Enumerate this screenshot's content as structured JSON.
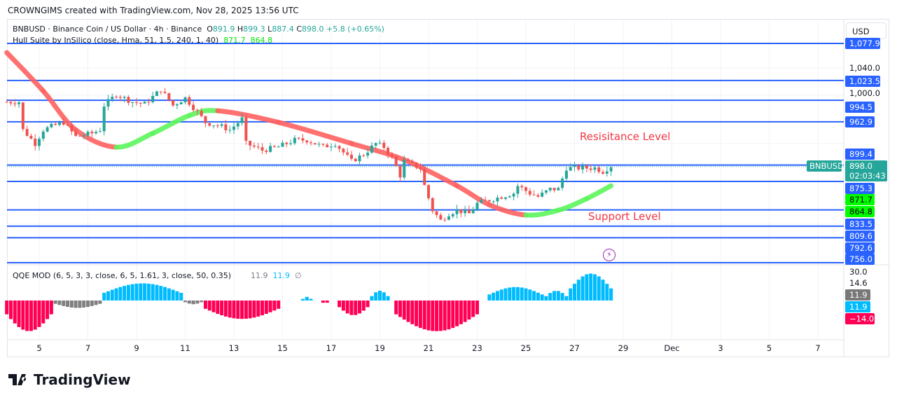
{
  "header": {
    "credit": "CROWNGIMS created with TradingView.com, Nov 28, 2025 13:56 UTC"
  },
  "legend": {
    "symbol": "BNBUSD · Binance Coin / US Dollar · 4h · Binance",
    "o_label": "O",
    "o": "891.9",
    "h_label": "H",
    "h": "899.3",
    "l_label": "L",
    "l": "887.4",
    "c_label": "C",
    "c": "898.0",
    "change": "+5.8 (+0.65%)",
    "hull": "Hull Suite by InSilico (close, Hma, 51, 1.5, 240, 1, 40)",
    "hull_v1": "871.7",
    "hull_v2": "864.8",
    "qqe": "QQE MOD (6, 5, 3, 3, close, 6, 5, 1.61, 3, close, 50, 0.35)",
    "qqe_v1": "11.9",
    "qqe_v2": "11.9",
    "qqe_v3": "∅"
  },
  "axis": {
    "currency": "USD",
    "ticks": [
      "1,040.0",
      "1,000.0"
    ],
    "qqe_ticks": [
      "30.0",
      "14.6"
    ],
    "labels": {
      "l1": "1,077.9",
      "l2": "1,023.5",
      "l3": "994.5",
      "l4": "962.9",
      "l5": "899.4",
      "price": "898.0",
      "countdown": "02:03:43",
      "l6": "875.3",
      "hull1": "871.7",
      "hull2": "864.8",
      "l7": "833.5",
      "l8": "809.6",
      "l9": "792.6",
      "l10": "756.0",
      "qqe_grey": "11.9",
      "qqe_blue": "11.9",
      "qqe_red": "−14.0"
    },
    "symbol_tag": "BNBUSD"
  },
  "dates": [
    "5",
    "7",
    "9",
    "11",
    "13",
    "15",
    "17",
    "19",
    "21",
    "23",
    "25",
    "27",
    "29",
    "Dec",
    "3",
    "5",
    "7"
  ],
  "annotations": {
    "resistance": "Resisitance Level",
    "support": "Support Level"
  },
  "icons": {
    "lightning": "lightning-icon",
    "logo": "tradingview-logo"
  },
  "logo_text": "TradingView",
  "colors": {
    "up": "#26a69a",
    "down": "#ef5350",
    "level": "#2962ff",
    "hull_up": "#00ff00",
    "hull_down": "#ff0000",
    "qqe_blue": "#00bcff",
    "qqe_grey": "#808080",
    "qqe_red": "#ff0055"
  },
  "chart_data": {
    "type": "candlestick",
    "timeframe": "4h",
    "ylim": [
      756,
      1077.9
    ],
    "price_path": [
      [
        "2025-11-03T16:00",
        992
      ],
      [
        "2025-11-04T04:00",
        992
      ],
      [
        "2025-11-04T08:00",
        951
      ],
      [
        "2025-11-04T20:00",
        931
      ],
      [
        "2025-11-05T04:00",
        951
      ],
      [
        "2025-11-05T12:00",
        956
      ],
      [
        "2025-11-06T00:00",
        962
      ],
      [
        "2025-11-06T12:00",
        941
      ],
      [
        "2025-11-07T04:00",
        946
      ],
      [
        "2025-11-07T12:00",
        951
      ],
      [
        "2025-11-07T16:00",
        987
      ],
      [
        "2025-11-08T04:00",
        1003
      ],
      [
        "2025-11-08T20:00",
        992
      ],
      [
        "2025-11-09T08:00",
        989
      ],
      [
        "2025-11-10T00:00",
        1010
      ],
      [
        "2025-11-10T12:00",
        987
      ],
      [
        "2025-11-11T00:00",
        998
      ],
      [
        "2025-11-11T12:00",
        977
      ],
      [
        "2025-11-11T20:00",
        962
      ],
      [
        "2025-11-12T12:00",
        956
      ],
      [
        "2025-11-12T20:00",
        951
      ],
      [
        "2025-11-13T08:00",
        967
      ],
      [
        "2025-11-13T12:00",
        931
      ],
      [
        "2025-11-14T04:00",
        921
      ],
      [
        "2025-11-14T20:00",
        926
      ],
      [
        "2025-11-15T12:00",
        936
      ],
      [
        "2025-11-16T00:00",
        936
      ],
      [
        "2025-11-16T16:00",
        926
      ],
      [
        "2025-11-17T04:00",
        931
      ],
      [
        "2025-11-17T20:00",
        905
      ],
      [
        "2025-11-18T08:00",
        915
      ],
      [
        "2025-11-18T20:00",
        931
      ],
      [
        "2025-11-19T04:00",
        926
      ],
      [
        "2025-11-19T12:00",
        910
      ],
      [
        "2025-11-19T20:00",
        884
      ],
      [
        "2025-11-20T00:00",
        905
      ],
      [
        "2025-11-20T16:00",
        895
      ],
      [
        "2025-11-20T20:00",
        869
      ],
      [
        "2025-11-21T04:00",
        833
      ],
      [
        "2025-11-21T12:00",
        818
      ],
      [
        "2025-11-21T20:00",
        828
      ],
      [
        "2025-11-22T04:00",
        833
      ],
      [
        "2025-11-22T16:00",
        828
      ],
      [
        "2025-11-23T00:00",
        843
      ],
      [
        "2025-11-23T12:00",
        848
      ],
      [
        "2025-11-24T00:00",
        853
      ],
      [
        "2025-11-24T12:00",
        858
      ],
      [
        "2025-11-24T16:00",
        869
      ],
      [
        "2025-11-25T04:00",
        858
      ],
      [
        "2025-11-25T12:00",
        853
      ],
      [
        "2025-11-26T00:00",
        864
      ],
      [
        "2025-11-26T08:00",
        864
      ],
      [
        "2025-11-26T16:00",
        895
      ],
      [
        "2025-11-27T04:00",
        895
      ],
      [
        "2025-11-27T20:00",
        895
      ],
      [
        "2025-11-28T04:00",
        890
      ],
      [
        "2025-11-28T12:00",
        898
      ]
    ],
    "hull": [
      [
        "2025-11-03T16:00",
        1064.5,
        "down"
      ],
      [
        "2025-11-05T04:00",
        1008,
        "down"
      ],
      [
        "2025-11-06T12:00",
        951,
        "down"
      ],
      [
        "2025-11-08T04:00",
        925.6,
        "up"
      ],
      [
        "2025-11-09T16:00",
        946,
        "up"
      ],
      [
        "2025-11-11T04:00",
        972,
        "up"
      ],
      [
        "2025-11-12T08:00",
        979,
        "down"
      ],
      [
        "2025-11-14T20:00",
        962,
        "down"
      ],
      [
        "2025-11-17T20:00",
        931,
        "down"
      ],
      [
        "2025-11-20T00:00",
        907,
        "down"
      ],
      [
        "2025-11-22T04:00",
        869,
        "down"
      ],
      [
        "2025-11-23T12:00",
        841,
        "down"
      ],
      [
        "2025-11-25T00:00",
        826,
        "up"
      ],
      [
        "2025-11-26T08:00",
        833,
        "up"
      ],
      [
        "2025-11-27T12:00",
        850,
        "up"
      ],
      [
        "2025-11-28T12:00",
        869,
        "up"
      ]
    ],
    "levels": [
      1077.9,
      1023.5,
      994.5,
      962.9,
      899.4,
      875.3,
      833.5,
      809.6,
      792.6,
      756.0
    ],
    "qqe_hist": [
      {
        "from": "2025-11-03T16:00",
        "to": "2025-11-05T12:00",
        "peak": -25,
        "color": "red"
      },
      {
        "from": "2025-11-05T16:00",
        "to": "2025-11-07T12:00",
        "peak": -6,
        "color": "grey"
      },
      {
        "from": "2025-11-07T16:00",
        "to": "2025-11-10T20:00",
        "peak": 14,
        "color": "blue"
      },
      {
        "from": "2025-11-11T00:00",
        "to": "2025-11-11T16:00",
        "peak": -3,
        "color": "grey"
      },
      {
        "from": "2025-11-11T20:00",
        "to": "2025-11-14T20:00",
        "peak": -15,
        "color": "red"
      },
      {
        "from": "2025-11-15T20:00",
        "to": "2025-11-16T04:00",
        "peak": 3,
        "color": "blue"
      },
      {
        "from": "2025-11-16T16:00",
        "to": "2025-11-16T20:00",
        "peak": -4,
        "color": "red"
      },
      {
        "from": "2025-11-17T08:00",
        "to": "2025-11-18T12:00",
        "peak": -12,
        "color": "red"
      },
      {
        "from": "2025-11-18T16:00",
        "to": "2025-11-19T08:00",
        "peak": 8,
        "color": "blue"
      },
      {
        "from": "2025-11-19T16:00",
        "to": "2025-11-23T00:00",
        "peak": -25,
        "color": "red"
      },
      {
        "from": "2025-11-23T12:00",
        "to": "2025-11-25T16:00",
        "peak": 11,
        "color": "blue"
      },
      {
        "from": "2025-11-25T20:00",
        "to": "2025-11-26T16:00",
        "peak": 8,
        "color": "blue"
      },
      {
        "from": "2025-11-26T20:00",
        "to": "2025-11-28T12:00",
        "peak": 22,
        "color": "blue"
      }
    ],
    "qqe_ylim": [
      -30,
      30
    ]
  }
}
